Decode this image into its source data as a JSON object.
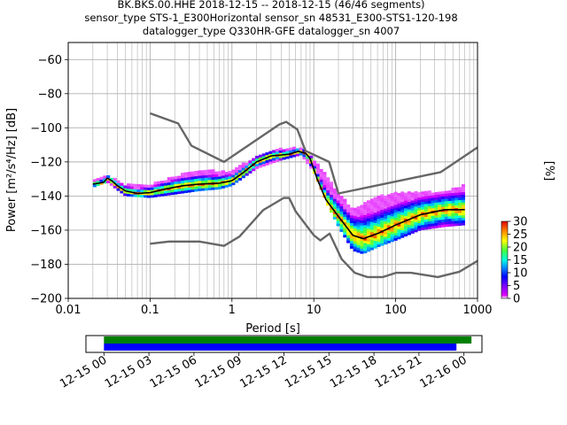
{
  "title": {
    "line1": "BK.BKS.00.HHE   2018-12-15 -- 2018-12-15  (46/46 segments)",
    "line2": "sensor_type STS-1_E300Horizontal sensor_sn 48531_E300-STS1-120-198",
    "line3": "datalogger_type Q330HR-GFE datalogger_sn 4007"
  },
  "chart_data": [
    {
      "type": "heatmap",
      "description_kind": "ppsd",
      "xlabel": "Period [s]",
      "ylabel": "Power [$m^2/s^4/Hz$] [dB]",
      "ylabel_display": "Power [m²/s⁴/Hz] [dB]",
      "xscale": "log",
      "xlim": [
        0.01,
        1000
      ],
      "ylim": [
        -200,
        -50
      ],
      "xticks": [
        0.01,
        0.1,
        1,
        10,
        100,
        1000
      ],
      "xtick_labels": [
        "0.01",
        "0.1",
        "1",
        "10",
        "100",
        "1000"
      ],
      "yticks": [
        -200,
        -180,
        -160,
        -140,
        -120,
        -100,
        -80,
        -60
      ],
      "ytick_labels": [
        "−200",
        "−180",
        "−160",
        "−140",
        "−120",
        "−100",
        "−80",
        "−60"
      ],
      "grid": true,
      "colorbar": {
        "label": "[%]",
        "range": [
          0,
          30
        ],
        "ticks": [
          0,
          5,
          10,
          15,
          20,
          25,
          30
        ],
        "tick_labels": [
          "0",
          "5",
          "10",
          "15",
          "20",
          "25",
          "30"
        ]
      },
      "series": [
        {
          "name": "",
          "role": "noise-model-high",
          "color": "#666666",
          "points": [
            [
              0.1,
              -91.5
            ],
            [
              0.22,
              -97.4
            ],
            [
              0.32,
              -110.5
            ],
            [
              0.8,
              -120
            ],
            [
              3.8,
              -98
            ],
            [
              4.6,
              -96.5
            ],
            [
              6.3,
              -101
            ],
            [
              7.9,
              -113.5
            ],
            [
              15.4,
              -120
            ],
            [
              20,
              -138.5
            ],
            [
              354.8,
              -126
            ],
            [
              1000,
              -111.5
            ]
          ]
        },
        {
          "name": "",
          "role": "noise-model-low",
          "color": "#666666",
          "points": [
            [
              0.1,
              -168
            ],
            [
              0.17,
              -166.7
            ],
            [
              0.4,
              -166.7
            ],
            [
              0.8,
              -169.2
            ],
            [
              1.24,
              -163.7
            ],
            [
              2.4,
              -148.3
            ],
            [
              4.3,
              -141.1
            ],
            [
              5,
              -141.1
            ],
            [
              6,
              -149
            ],
            [
              10,
              -163
            ],
            [
              12,
              -166
            ],
            [
              15.6,
              -162
            ],
            [
              21.9,
              -177
            ],
            [
              31.6,
              -185
            ],
            [
              45,
              -187.5
            ],
            [
              70,
              -187.5
            ],
            [
              101,
              -185
            ],
            [
              154,
              -185
            ],
            [
              328,
              -187.5
            ],
            [
              600,
              -184.4
            ],
            [
              1000,
              -178
            ]
          ]
        },
        {
          "name": "",
          "role": "mean-psd",
          "color": "#000000",
          "points": [
            [
              0.02,
              -133
            ],
            [
              0.027,
              -132
            ],
            [
              0.03,
              -129.5
            ],
            [
              0.034,
              -131
            ],
            [
              0.04,
              -134
            ],
            [
              0.05,
              -137
            ],
            [
              0.07,
              -138.5
            ],
            [
              0.1,
              -138
            ],
            [
              0.15,
              -136
            ],
            [
              0.25,
              -134
            ],
            [
              0.4,
              -133
            ],
            [
              0.7,
              -132.5
            ],
            [
              1,
              -131
            ],
            [
              1.4,
              -126
            ],
            [
              2,
              -120
            ],
            [
              3,
              -116.5
            ],
            [
              5,
              -115.5
            ],
            [
              6.5,
              -113.8
            ],
            [
              8,
              -115
            ],
            [
              9,
              -118
            ],
            [
              11,
              -130
            ],
            [
              14,
              -142
            ],
            [
              20,
              -152
            ],
            [
              30,
              -163
            ],
            [
              40,
              -165
            ],
            [
              60,
              -162
            ],
            [
              100,
              -157
            ],
            [
              200,
              -151
            ],
            [
              400,
              -148
            ],
            [
              700,
              -148
            ]
          ]
        }
      ],
      "density_band": {
        "periods": [
          0.02,
          0.03,
          0.05,
          0.1,
          0.2,
          0.4,
          0.7,
          1,
          2,
          4,
          7,
          10,
          15,
          20,
          30,
          40,
          60,
          100,
          200,
          400,
          700
        ],
        "lower_db": [
          -135,
          -132,
          -140,
          -141,
          -139,
          -137,
          -136,
          -134,
          -124,
          -119,
          -116,
          -126,
          -146,
          -158,
          -172,
          -174,
          -170,
          -166,
          -160,
          -158,
          -157
        ],
        "upper_db": [
          -131,
          -128,
          -134,
          -134,
          -129,
          -125,
          -126,
          -126,
          -117,
          -113,
          -112,
          -119,
          -130,
          -139,
          -148,
          -145,
          -141,
          -139,
          -138,
          -138,
          -134
        ],
        "max_percent": 30
      }
    },
    {
      "type": "timeline",
      "role": "data-availability",
      "xtick_labels": [
        "12-15 00",
        "12-15 03",
        "12-15 06",
        "12-15 09",
        "12-15 12",
        "12-15 15",
        "12-15 18",
        "12-15 21",
        "12-16 00"
      ],
      "x_hours": [
        0,
        3,
        6,
        9,
        12,
        15,
        18,
        21,
        24
      ],
      "xlim_hours": [
        -1.2,
        25.2
      ],
      "bars": [
        {
          "color": "#008000",
          "start_hours": 0,
          "end_hours": 24.5
        },
        {
          "color": "#0000ff",
          "start_hours": 0,
          "end_hours": 23.5
        }
      ]
    }
  ]
}
